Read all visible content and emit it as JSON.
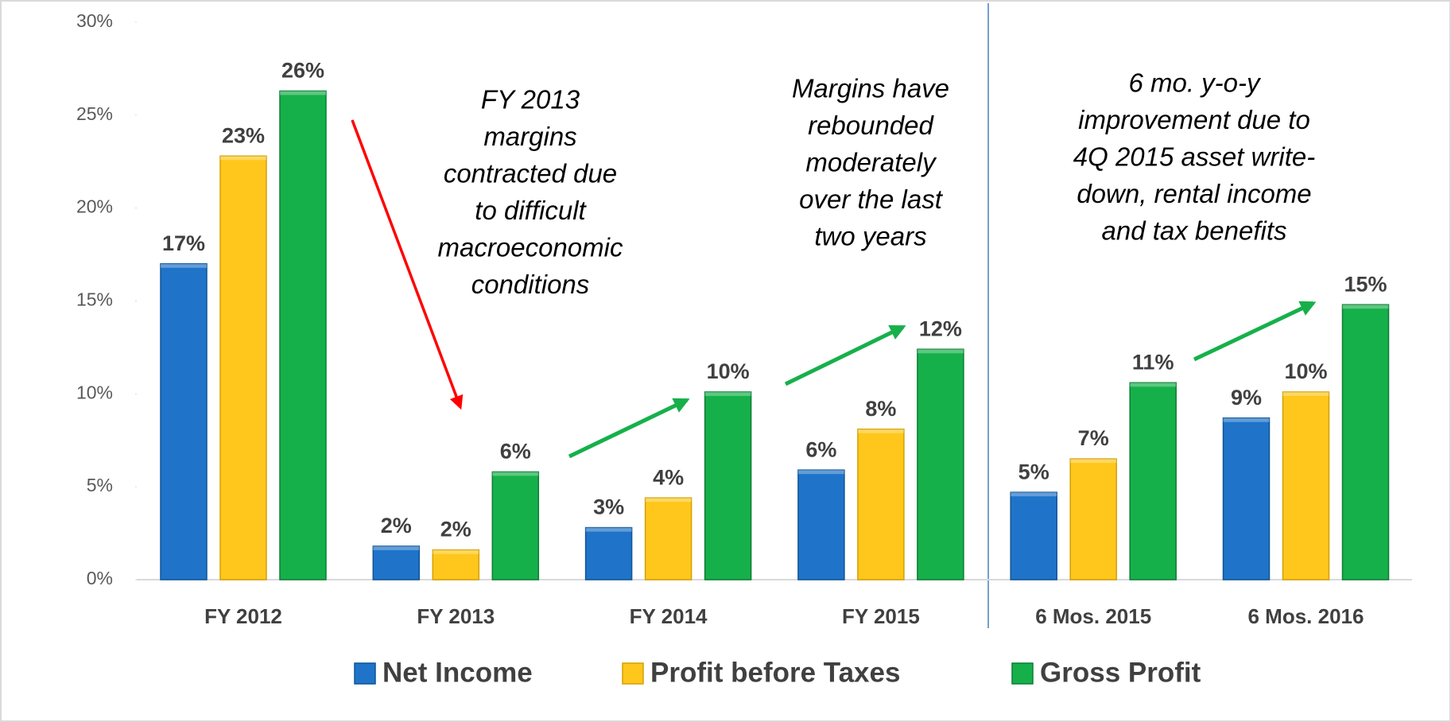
{
  "chart_data": {
    "type": "bar",
    "categories": [
      "FY 2012",
      "FY 2013",
      "FY 2014",
      "FY 2015",
      "6 Mos. 2015",
      "6 Mos. 2016"
    ],
    "series": [
      {
        "name": "Net Income",
        "color": "#1f74c9",
        "values": [
          17,
          1.8,
          2.8,
          5.9,
          4.7,
          8.7
        ],
        "value_labels": [
          "17%",
          "2%",
          "3%",
          "6%",
          "5%",
          "9%"
        ]
      },
      {
        "name": "Profit before Taxes",
        "color": "#ffc71c",
        "values": [
          22.8,
          1.6,
          4.4,
          8.1,
          6.5,
          10.1
        ],
        "value_labels": [
          "23%",
          "2%",
          "4%",
          "8%",
          "7%",
          "10%"
        ]
      },
      {
        "name": "Gross Profit",
        "color": "#16b04b",
        "values": [
          26.3,
          5.8,
          10.1,
          12.4,
          10.6,
          14.8
        ],
        "value_labels": [
          "26%",
          "6%",
          "10%",
          "12%",
          "11%",
          "15%"
        ]
      }
    ],
    "ylim": [
      0,
      30
    ],
    "yticks": [
      {
        "value": 0,
        "label": "0%"
      },
      {
        "value": 5,
        "label": "5%"
      },
      {
        "value": 10,
        "label": "10%"
      },
      {
        "value": 15,
        "label": "15%"
      },
      {
        "value": 20,
        "label": "20%"
      },
      {
        "value": 25,
        "label": "25%"
      },
      {
        "value": 30,
        "label": "30%"
      }
    ],
    "annotations": [
      [
        "FY 2013",
        "margins",
        "contracted due",
        "to difficult",
        "macroeconomic",
        "conditions"
      ],
      [
        "Margins have",
        "rebounded",
        "moderately",
        "over the last",
        "two years"
      ],
      [
        "6 mo. y-o-y",
        "improvement due to",
        "4Q 2015 asset write-",
        "down, rental income",
        "and tax benefits"
      ]
    ],
    "legend": "bottom"
  }
}
